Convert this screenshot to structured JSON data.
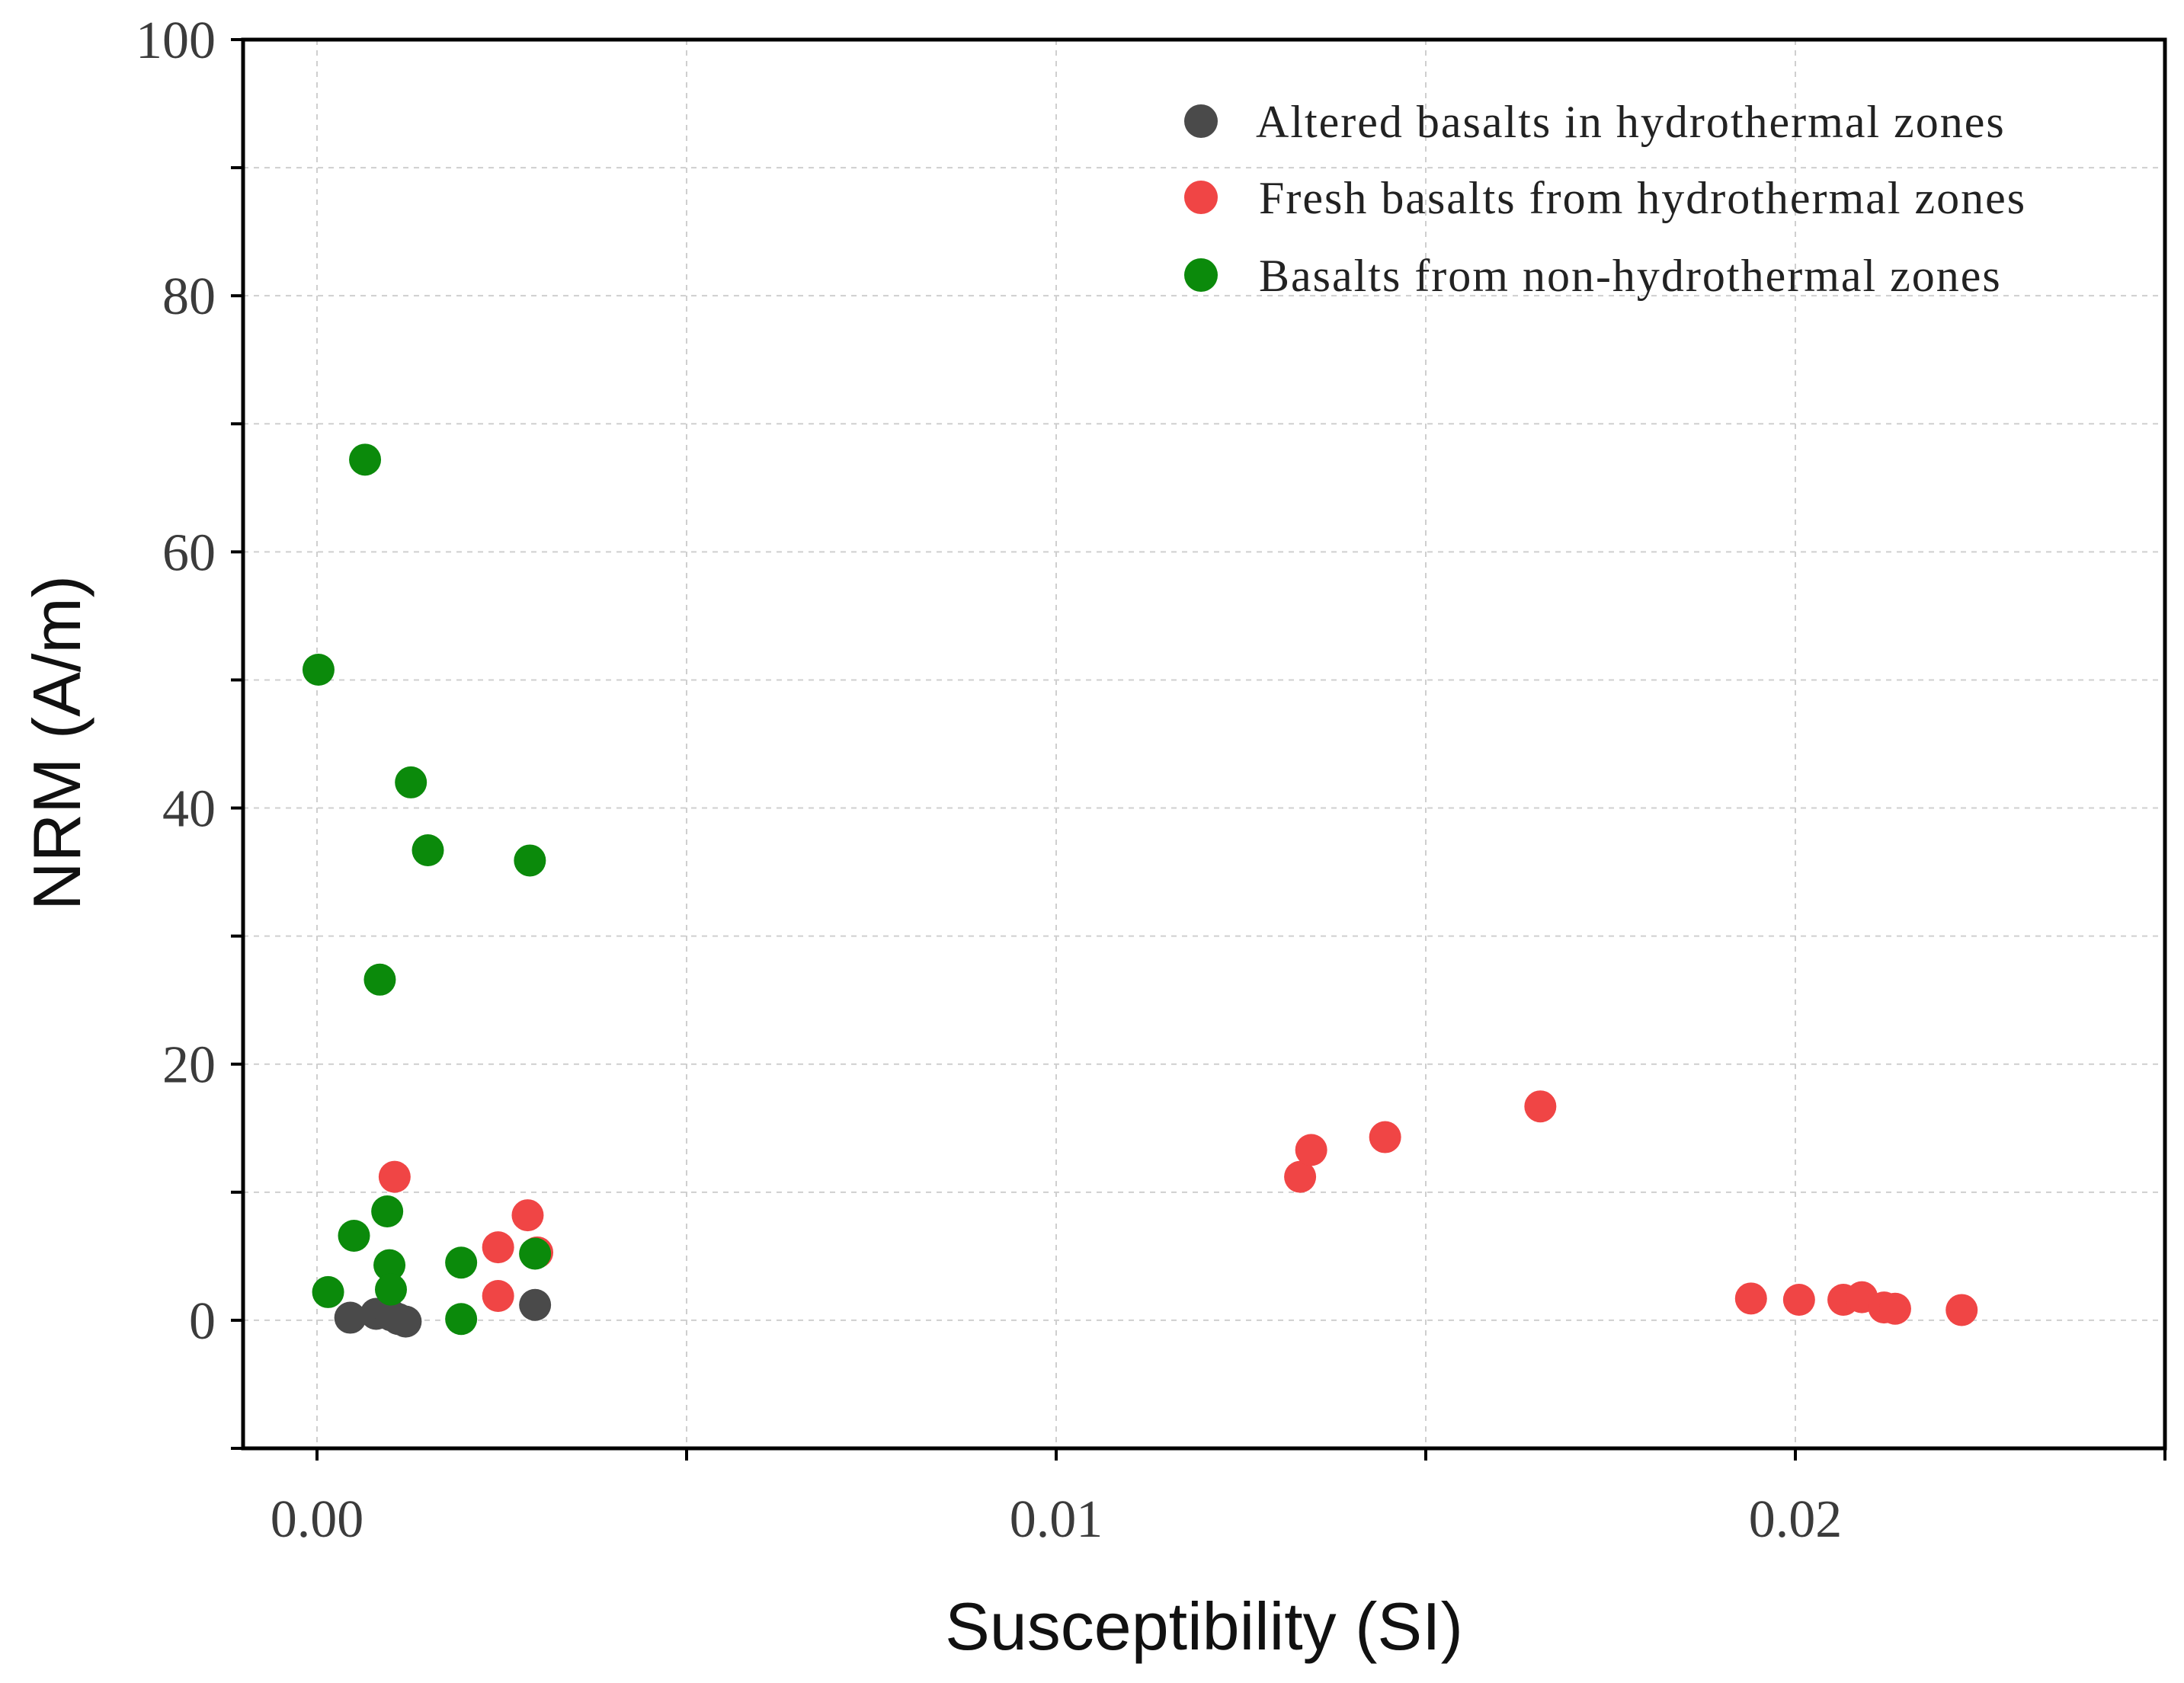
{
  "chart_data": {
    "type": "scatter",
    "title": "",
    "xlabel": "Susceptibility (SI)",
    "ylabel": "NRM (A/m)",
    "xlim": [
      -0.001,
      0.025
    ],
    "ylim": [
      -10,
      100
    ],
    "x_ticks": [
      {
        "value": 0.0,
        "label": "0.00"
      },
      {
        "value": 0.01,
        "label": "0.01"
      },
      {
        "value": 0.02,
        "label": "0.02"
      }
    ],
    "x_minor_ticks": [
      0.005,
      0.015,
      0.025
    ],
    "y_ticks": [
      {
        "value": 0,
        "label": "0"
      },
      {
        "value": 20,
        "label": "20"
      },
      {
        "value": 40,
        "label": "40"
      },
      {
        "value": 60,
        "label": "60"
      },
      {
        "value": 80,
        "label": "80"
      },
      {
        "value": 100,
        "label": "100"
      }
    ],
    "y_minor_ticks": [
      -10,
      10,
      30,
      50,
      70,
      90
    ],
    "grid": true,
    "legend_position": "top-right",
    "series": [
      {
        "name": "Altered basalts in hydrothermal zones",
        "color": "#4a4a4a",
        "points": [
          {
            "x": 0.00045,
            "y": 0.2
          },
          {
            "x": 0.0008,
            "y": 0.5
          },
          {
            "x": 0.001,
            "y": 0.4
          },
          {
            "x": 0.0011,
            "y": 0.1
          },
          {
            "x": 0.0012,
            "y": -0.1
          },
          {
            "x": 0.00295,
            "y": 1.2
          }
        ]
      },
      {
        "name": "Fresh basalts from hydrothermal zones",
        "color": "#f04545",
        "points": [
          {
            "x": 0.00105,
            "y": 11.2
          },
          {
            "x": 0.00245,
            "y": 5.7
          },
          {
            "x": 0.00245,
            "y": 1.9
          },
          {
            "x": 0.00285,
            "y": 8.2
          },
          {
            "x": 0.00298,
            "y": 5.3
          },
          {
            "x": 0.0133,
            "y": 11.2
          },
          {
            "x": 0.01345,
            "y": 13.3
          },
          {
            "x": 0.01445,
            "y": 14.3
          },
          {
            "x": 0.01655,
            "y": 16.7
          },
          {
            "x": 0.0194,
            "y": 1.7
          },
          {
            "x": 0.02005,
            "y": 1.6
          },
          {
            "x": 0.02065,
            "y": 1.6
          },
          {
            "x": 0.0209,
            "y": 1.8
          },
          {
            "x": 0.0212,
            "y": 1.0
          },
          {
            "x": 0.02135,
            "y": 0.9
          },
          {
            "x": 0.02225,
            "y": 0.8
          }
        ]
      },
      {
        "name": "Basalts from non-hydrothermal zones",
        "color": "#0b8a0b",
        "points": [
          {
            "x": 2e-05,
            "y": 50.8
          },
          {
            "x": 0.00015,
            "y": 2.2
          },
          {
            "x": 0.0005,
            "y": 6.6
          },
          {
            "x": 0.00065,
            "y": 67.2
          },
          {
            "x": 0.00085,
            "y": 26.6
          },
          {
            "x": 0.00095,
            "y": 8.5
          },
          {
            "x": 0.00098,
            "y": 4.3
          },
          {
            "x": 0.001,
            "y": 2.4
          },
          {
            "x": 0.00127,
            "y": 42.0
          },
          {
            "x": 0.0015,
            "y": 36.7
          },
          {
            "x": 0.00195,
            "y": 4.5
          },
          {
            "x": 0.00195,
            "y": 0.1
          },
          {
            "x": 0.00288,
            "y": 35.9
          },
          {
            "x": 0.00295,
            "y": 5.2
          }
        ]
      }
    ]
  }
}
